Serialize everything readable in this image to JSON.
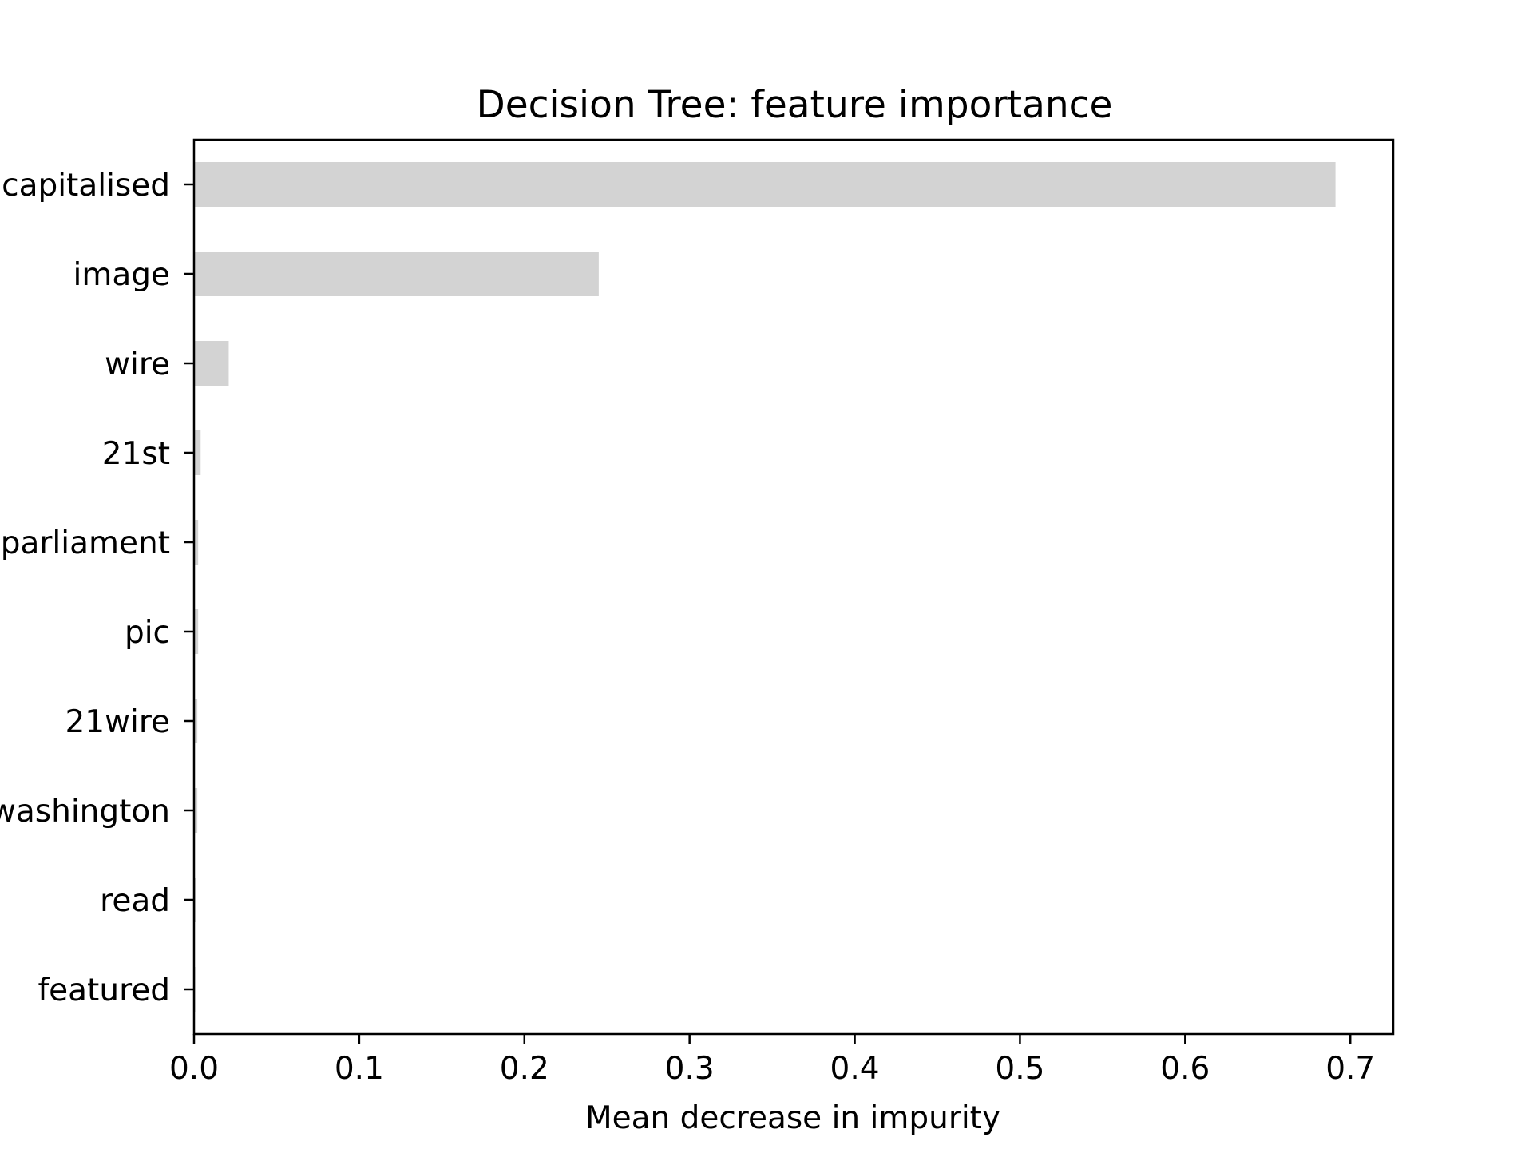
{
  "chart_data": {
    "type": "bar",
    "orientation": "horizontal",
    "title": "Decision Tree: feature importance",
    "xlabel": "Mean decrease in impurity",
    "ylabel": "",
    "categories": [
      "capitalised",
      "image",
      "wire",
      "21st",
      "parliament",
      "pic",
      "21wire",
      "washington",
      "read",
      "featured"
    ],
    "values": [
      0.691,
      0.245,
      0.021,
      0.004,
      0.0025,
      0.0025,
      0.002,
      0.002,
      0.001,
      0.0008
    ],
    "xlim": [
      0,
      0.726
    ],
    "xticks": [
      0.0,
      0.1,
      0.2,
      0.3,
      0.4,
      0.5,
      0.6,
      0.7
    ],
    "xtick_labels": [
      "0.0",
      "0.1",
      "0.2",
      "0.3",
      "0.4",
      "0.5",
      "0.6",
      "0.7"
    ],
    "grid": false,
    "legend": "none",
    "bar_color": "#d3d3d3",
    "axis_color": "#000000"
  }
}
